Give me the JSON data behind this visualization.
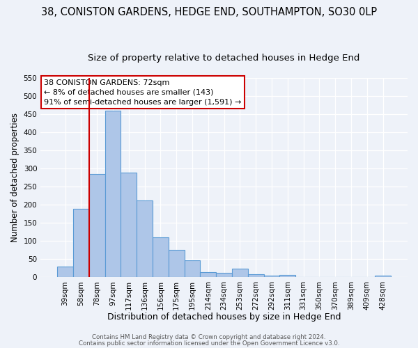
{
  "title": "38, CONISTON GARDENS, HEDGE END, SOUTHAMPTON, SO30 0LP",
  "subtitle": "Size of property relative to detached houses in Hedge End",
  "xlabel": "Distribution of detached houses by size in Hedge End",
  "ylabel": "Number of detached properties",
  "bar_labels": [
    "39sqm",
    "58sqm",
    "78sqm",
    "97sqm",
    "117sqm",
    "136sqm",
    "156sqm",
    "175sqm",
    "195sqm",
    "214sqm",
    "234sqm",
    "253sqm",
    "272sqm",
    "292sqm",
    "311sqm",
    "331sqm",
    "350sqm",
    "370sqm",
    "389sqm",
    "409sqm",
    "428sqm"
  ],
  "bar_values": [
    30,
    190,
    285,
    460,
    290,
    213,
    110,
    75,
    46,
    14,
    12,
    23,
    9,
    5,
    6,
    0,
    0,
    0,
    0,
    0,
    5
  ],
  "bar_color": "#aec6e8",
  "bar_edge_color": "#5b9bd5",
  "ylim": [
    0,
    550
  ],
  "yticks": [
    0,
    50,
    100,
    150,
    200,
    250,
    300,
    350,
    400,
    450,
    500,
    550
  ],
  "vline_color": "#cc0000",
  "annotation_box_text": "38 CONISTON GARDENS: 72sqm\n← 8% of detached houses are smaller (143)\n91% of semi-detached houses are larger (1,591) →",
  "annotation_box_color": "#cc0000",
  "footer_line1": "Contains HM Land Registry data © Crown copyright and database right 2024.",
  "footer_line2": "Contains public sector information licensed under the Open Government Licence v3.0.",
  "bg_color": "#eef2f9",
  "grid_color": "#ffffff",
  "title_fontsize": 10.5,
  "subtitle_fontsize": 9.5,
  "xlabel_fontsize": 9,
  "ylabel_fontsize": 8.5,
  "tick_fontsize": 7.5,
  "footer_fontsize": 6.2,
  "annot_fontsize": 8
}
